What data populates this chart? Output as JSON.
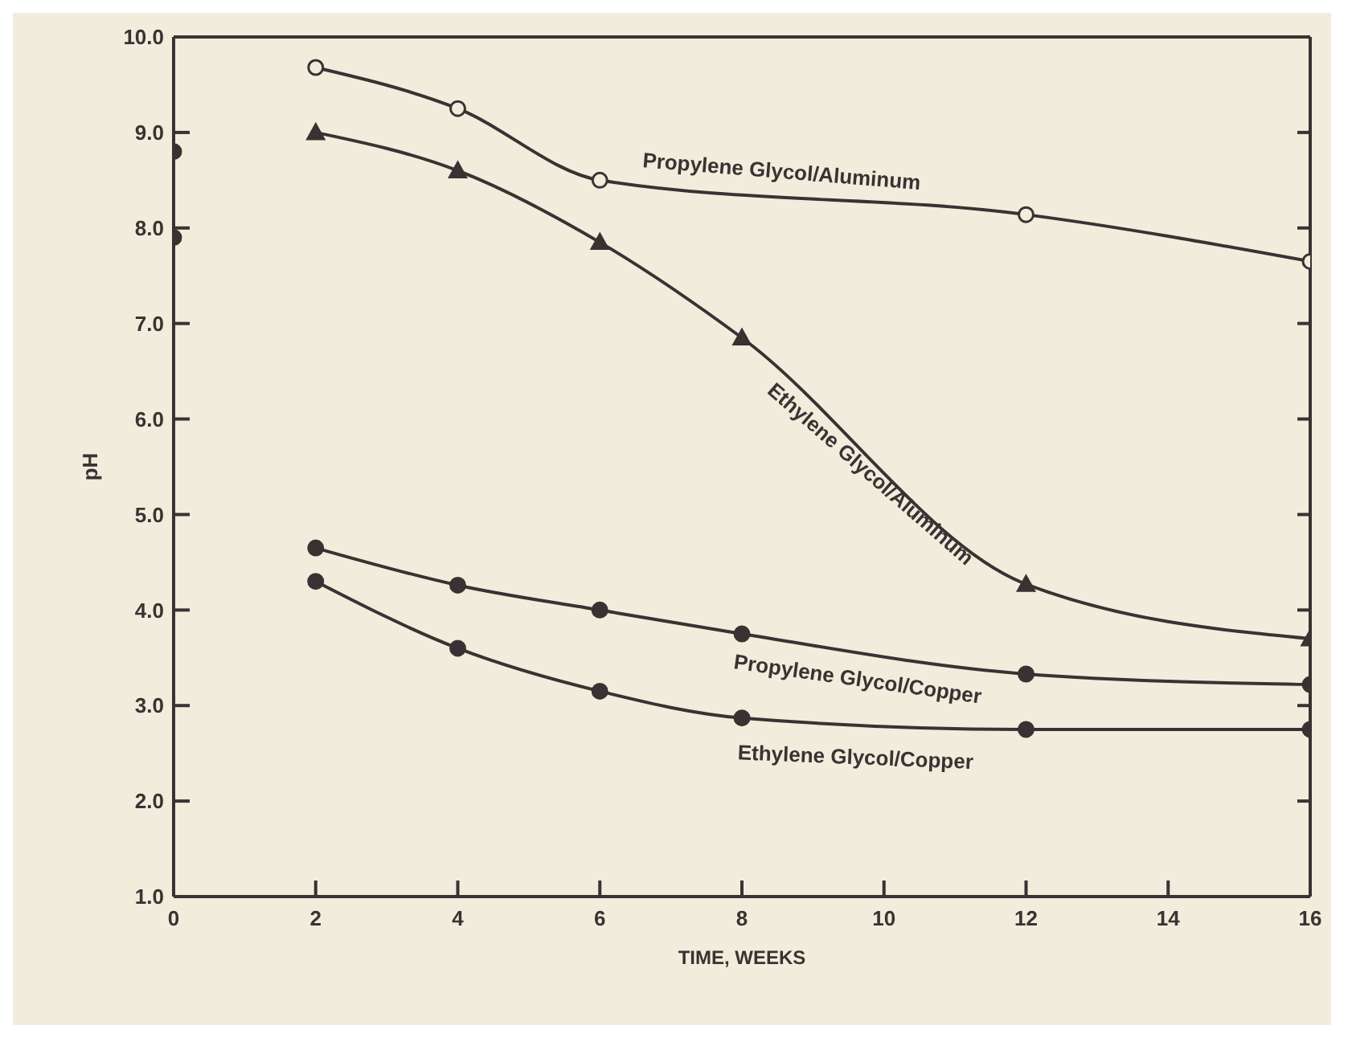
{
  "chart_data": {
    "type": "line",
    "xlabel": "TIME, WEEKS",
    "ylabel": "pH",
    "xlim": [
      0,
      16
    ],
    "xticks": [
      0,
      2,
      4,
      6,
      8,
      10,
      12,
      14,
      16
    ],
    "ylim": [
      1.0,
      10.0
    ],
    "yticks": [
      {
        "value": 1,
        "label": "1.0"
      },
      {
        "value": 2,
        "label": "2.0"
      },
      {
        "value": 3,
        "label": "3.0"
      },
      {
        "value": 4,
        "label": "4.0"
      },
      {
        "value": 5,
        "label": "5.0"
      },
      {
        "value": 6,
        "label": "6.0"
      },
      {
        "value": 7,
        "label": "7.0"
      },
      {
        "value": 8,
        "label": "8.0"
      },
      {
        "value": 9,
        "label": "9.0"
      },
      {
        "value": 10,
        "label": "10.0"
      }
    ],
    "grid": false,
    "legend": false,
    "line_style": "solid",
    "series": [
      {
        "name": "Propylene Glycol/Aluminum",
        "color": "#3a3232",
        "marker": "circle",
        "x": [
          2,
          4,
          6,
          12,
          16
        ],
        "values": [
          9.68,
          9.25,
          8.5,
          8.14,
          7.65
        ]
      },
      {
        "name": "Ethylene Glycol/Aluminum",
        "color": "#3a3232",
        "marker": "triangle",
        "x": [
          2,
          4,
          6,
          8,
          12,
          16
        ],
        "values": [
          9.0,
          8.6,
          7.85,
          6.85,
          4.27,
          3.7
        ]
      },
      {
        "name": "Propylene Glycol/Copper",
        "color": "#3a3232",
        "marker": "circle",
        "x": [
          2,
          4,
          6,
          8,
          12,
          16
        ],
        "values": [
          4.65,
          4.26,
          4.0,
          3.75,
          3.33,
          3.22
        ]
      },
      {
        "name": "Ethylene Glycol/Copper",
        "color": "#3a3232",
        "marker": "circle",
        "x": [
          2,
          4,
          6,
          8,
          12,
          16
        ],
        "values": [
          4.3,
          3.6,
          3.15,
          2.87,
          2.75,
          2.75
        ]
      },
      {
        "type": "scatter",
        "color": "#3a3232",
        "marker": "circle",
        "x": [
          0,
          0
        ],
        "values": [
          8.8,
          7.9
        ]
      }
    ]
  }
}
